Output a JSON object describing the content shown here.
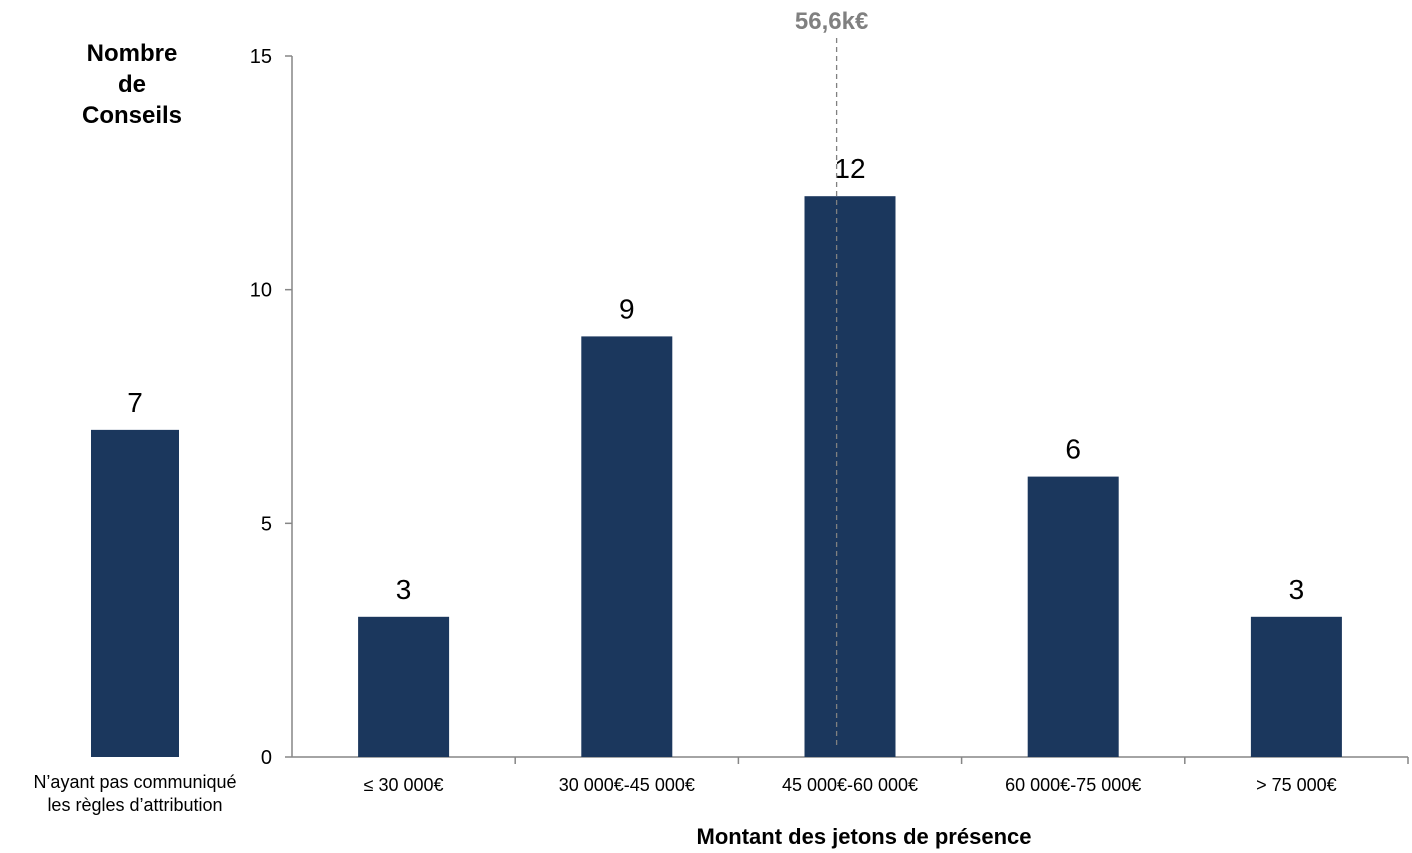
{
  "chart_data": [
    {
      "type": "bar",
      "categories": [
        "N’ayant pas communiqué les règles d’attribution"
      ],
      "category_lines": [
        [
          "N’ayant pas communiqué",
          "les règles d’attribution"
        ]
      ],
      "values": [
        7
      ],
      "data_labels": [
        "7"
      ]
    },
    {
      "type": "bar",
      "ylabel": "Nombre de Conseils",
      "ylabel_lines": [
        "Nombre",
        "de",
        "Conseils"
      ],
      "xlabel": "Montant des jetons de présence",
      "categories": [
        "≤ 30 000€",
        "30 000€-45 000€",
        "45 000€-60 000€",
        "60 000€-75 000€",
        "> 75 000€"
      ],
      "values": [
        3,
        9,
        12,
        6,
        3
      ],
      "data_labels": [
        "3",
        "9",
        "12",
        "6",
        "3"
      ],
      "ylim": [
        0,
        15
      ],
      "yticks": [
        0,
        5,
        10,
        15
      ],
      "ytick_labels": [
        "0",
        "5",
        "10",
        "15"
      ],
      "grid": false,
      "reference_line": {
        "x_category_index": 2,
        "position_in_bin": 0.44,
        "label": "56,6k€",
        "style": "dashed",
        "color": "#808080"
      }
    }
  ],
  "colors": {
    "bar": "#1b375d",
    "axis": "#868686",
    "reference": "#808080",
    "text": "#000000"
  }
}
